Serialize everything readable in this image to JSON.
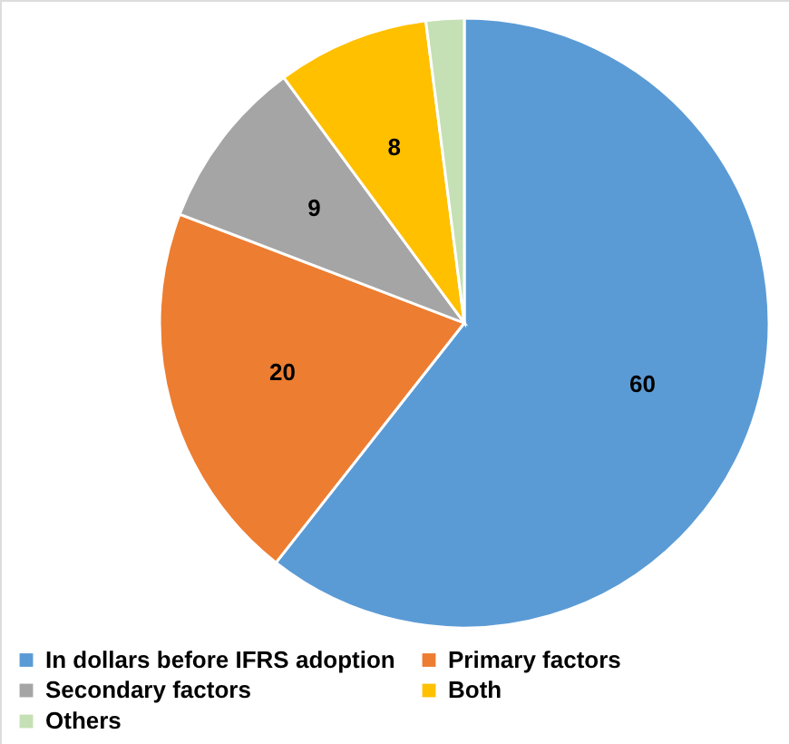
{
  "chart_data": {
    "type": "pie",
    "categories": [
      "In dollars before IFRS adoption",
      "Primary factors",
      "Secondary factors",
      "Both",
      "Others"
    ],
    "values": [
      60,
      20,
      9,
      8,
      2
    ],
    "colors": [
      "#5b9bd5",
      "#ed7d31",
      "#a5a5a5",
      "#ffc000",
      "#c5e0b4"
    ],
    "value_labels": [
      "60",
      "20",
      "9",
      "8",
      null
    ],
    "legend": "bottom"
  }
}
